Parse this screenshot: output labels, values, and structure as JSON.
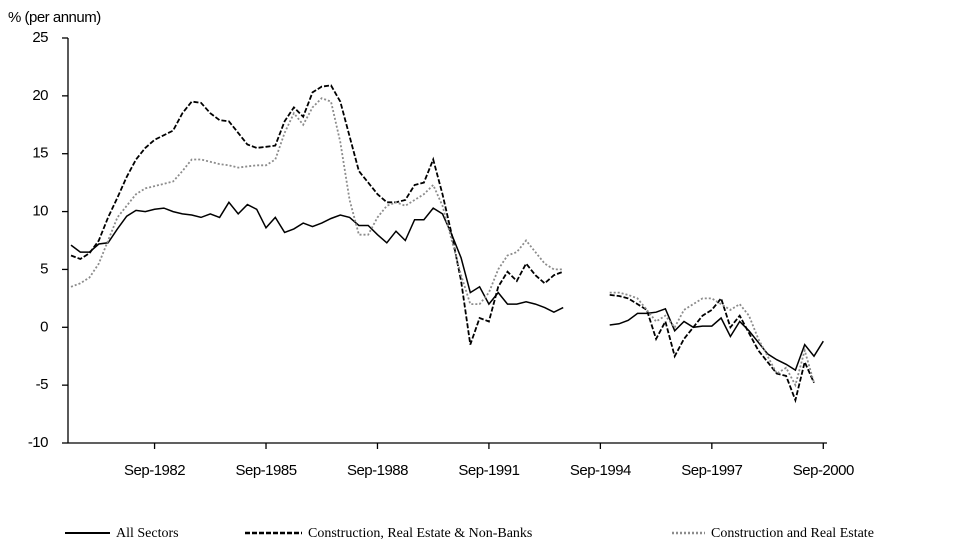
{
  "chart_data": {
    "type": "line",
    "y_label": "% (per annum)",
    "x": [
      1980.5,
      1980.75,
      1981,
      1981.25,
      1981.5,
      1981.75,
      1982,
      1982.25,
      1982.5,
      1982.75,
      1983,
      1983.25,
      1983.5,
      1983.75,
      1984,
      1984.25,
      1984.5,
      1984.75,
      1985,
      1985.25,
      1985.5,
      1985.75,
      1986,
      1986.25,
      1986.5,
      1986.75,
      1987,
      1987.25,
      1987.5,
      1987.75,
      1988,
      1988.25,
      1988.5,
      1988.75,
      1989,
      1989.25,
      1989.5,
      1989.75,
      1990,
      1990.25,
      1990.5,
      1990.75,
      1991,
      1991.25,
      1991.5,
      1991.75,
      1992,
      1992.25,
      1992.5,
      1992.75,
      1993,
      1993.25,
      1993.5,
      1993.75,
      1994,
      1994.25,
      1994.5,
      1994.75,
      1995,
      1995.25,
      1995.5,
      1995.75,
      1996,
      1996.25,
      1996.5,
      1996.75,
      1997,
      1997.25,
      1997.5,
      1997.75,
      1998,
      1998.25,
      1998.5,
      1998.75,
      1999,
      1999.25,
      1999.5,
      1999.75,
      2000,
      2000.25,
      2000.5,
      2000.75
    ],
    "series": [
      {
        "name": "All Sectors",
        "color": "#000000",
        "style": "solid",
        "values": [
          7.1,
          6.5,
          6.5,
          7.2,
          7.3,
          8.5,
          9.6,
          10.1,
          10,
          10.2,
          10.3,
          10,
          9.8,
          9.7,
          9.5,
          9.8,
          9.5,
          10.8,
          9.8,
          10.6,
          10.2,
          8.6,
          9.5,
          8.2,
          8.5,
          9,
          8.7,
          9,
          9.4,
          9.7,
          9.5,
          8.8,
          8.8,
          8,
          7.3,
          8.3,
          7.5,
          9.3,
          9.3,
          10.3,
          9.8,
          8,
          6,
          3,
          3.5,
          2,
          3,
          2,
          2,
          2.2,
          2,
          1.7,
          1.3,
          1.7,
          null,
          null,
          null,
          null,
          0.2,
          0.3,
          0.6,
          1.2,
          1.2,
          1.3,
          1.6,
          -0.3,
          0.5,
          0,
          0.1,
          0.1,
          0.8,
          -0.8,
          0.5,
          -0.3,
          -1.3,
          -2.3,
          -2.8,
          -3.2,
          -3.7,
          -1.5,
          -2.5,
          -1.2
        ]
      },
      {
        "name": "Construction, Real Estate & Non-Banks",
        "color": "#000000",
        "style": "dashed",
        "values": [
          6.2,
          5.9,
          6.4,
          7.5,
          9.5,
          11.2,
          13,
          14.5,
          15.5,
          16.2,
          16.6,
          17,
          18.5,
          19.5,
          19.4,
          18.5,
          17.9,
          17.8,
          16.8,
          15.8,
          15.5,
          15.6,
          15.7,
          17.8,
          19,
          18.2,
          20.3,
          20.8,
          20.9,
          19.5,
          16.5,
          13.5,
          12.5,
          11.5,
          10.8,
          10.8,
          11,
          12.3,
          12.5,
          14.5,
          11.5,
          8,
          4,
          -1.5,
          0.8,
          0.5,
          3.5,
          4.8,
          4,
          5.5,
          4.5,
          3.8,
          4.5,
          4.8,
          null,
          null,
          null,
          null,
          2.8,
          2.7,
          2.5,
          2,
          1.5,
          -1,
          0.5,
          -2.5,
          -1,
          0,
          1,
          1.5,
          2.5,
          0,
          1,
          -0.5,
          -2,
          -3,
          -4,
          -4.2,
          -6.3,
          -3,
          -4.8,
          null
        ]
      },
      {
        "name": "Construction and Real Estate",
        "color": "#8c8c8c",
        "style": "dotted",
        "values": [
          3.5,
          3.8,
          4.3,
          5.5,
          7.5,
          9.5,
          10.5,
          11.5,
          12,
          12.2,
          12.4,
          12.6,
          13.5,
          14.5,
          14.5,
          14.3,
          14.1,
          14,
          13.8,
          13.9,
          14,
          14,
          14.5,
          16.8,
          18.5,
          17.5,
          19,
          19.8,
          19.5,
          16,
          11,
          8,
          8,
          9.5,
          10.5,
          10.8,
          10.5,
          11,
          11.5,
          12.3,
          10.5,
          7.5,
          4.5,
          2,
          2,
          3,
          5,
          6.2,
          6.5,
          7.5,
          6.5,
          5.5,
          5,
          5,
          null,
          null,
          null,
          null,
          3,
          3,
          2.8,
          2.5,
          1.5,
          0.5,
          1,
          0,
          1.5,
          2,
          2.5,
          2.5,
          2,
          1.5,
          2,
          1,
          -1,
          -2.5,
          -4,
          -3.5,
          -5,
          -2,
          -4.8,
          null
        ]
      }
    ],
    "xlim": [
      1980.42,
      2000.85
    ],
    "xticks": [
      {
        "value": 1982.75,
        "label": "Sep-1982"
      },
      {
        "value": 1985.75,
        "label": "Sep-1985"
      },
      {
        "value": 1988.75,
        "label": "Sep-1988"
      },
      {
        "value": 1991.75,
        "label": "Sep-1991"
      },
      {
        "value": 1994.75,
        "label": "Sep-1994"
      },
      {
        "value": 1997.75,
        "label": "Sep-1997"
      },
      {
        "value": 2000.75,
        "label": "Sep-2000"
      }
    ],
    "ylim": [
      -10,
      25
    ],
    "yticks": [
      -10,
      -5,
      0,
      5,
      10,
      15,
      20,
      25
    ],
    "grid": false
  }
}
